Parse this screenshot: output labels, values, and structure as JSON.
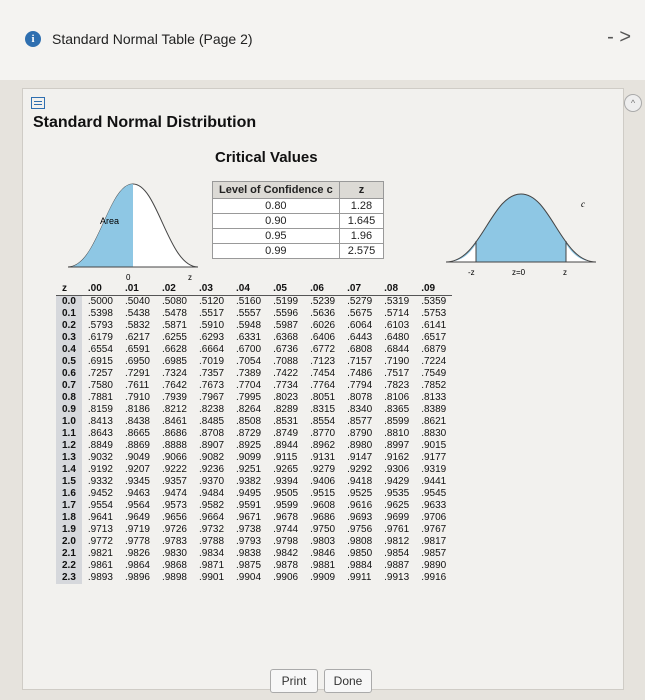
{
  "window": {
    "title": "Standard Normal Table (Page 2)",
    "info_icon": "info-icon",
    "minimize": "-",
    "expand": ">"
  },
  "heading": "Standard Normal Distribution",
  "subheading": "Critical Values",
  "critical_table": {
    "headers": [
      "Level of Confidence c",
      "z"
    ],
    "rows": [
      [
        "0.80",
        "1.28"
      ],
      [
        "0.90",
        "1.645"
      ],
      [
        "0.95",
        "1.96"
      ],
      [
        "0.99",
        "2.575"
      ]
    ]
  },
  "left_curve": {
    "area_label": "Area",
    "axis_label": "0",
    "z_label": "z"
  },
  "right_curve": {
    "c_label": "c",
    "neg_z": "-z",
    "zero": "z=0",
    "pos_z": "z"
  },
  "ztable": {
    "columns": [
      "z",
      ".00",
      ".01",
      ".02",
      ".03",
      ".04",
      ".05",
      ".06",
      ".07",
      ".08",
      ".09"
    ],
    "rows": [
      [
        "0.0",
        ".5000",
        ".5040",
        ".5080",
        ".5120",
        ".5160",
        ".5199",
        ".5239",
        ".5279",
        ".5319",
        ".5359"
      ],
      [
        "0.1",
        ".5398",
        ".5438",
        ".5478",
        ".5517",
        ".5557",
        ".5596",
        ".5636",
        ".5675",
        ".5714",
        ".5753"
      ],
      [
        "0.2",
        ".5793",
        ".5832",
        ".5871",
        ".5910",
        ".5948",
        ".5987",
        ".6026",
        ".6064",
        ".6103",
        ".6141"
      ],
      [
        "0.3",
        ".6179",
        ".6217",
        ".6255",
        ".6293",
        ".6331",
        ".6368",
        ".6406",
        ".6443",
        ".6480",
        ".6517"
      ],
      [
        "0.4",
        ".6554",
        ".6591",
        ".6628",
        ".6664",
        ".6700",
        ".6736",
        ".6772",
        ".6808",
        ".6844",
        ".6879"
      ],
      [
        "0.5",
        ".6915",
        ".6950",
        ".6985",
        ".7019",
        ".7054",
        ".7088",
        ".7123",
        ".7157",
        ".7190",
        ".7224"
      ],
      [
        "0.6",
        ".7257",
        ".7291",
        ".7324",
        ".7357",
        ".7389",
        ".7422",
        ".7454",
        ".7486",
        ".7517",
        ".7549"
      ],
      [
        "0.7",
        ".7580",
        ".7611",
        ".7642",
        ".7673",
        ".7704",
        ".7734",
        ".7764",
        ".7794",
        ".7823",
        ".7852"
      ],
      [
        "0.8",
        ".7881",
        ".7910",
        ".7939",
        ".7967",
        ".7995",
        ".8023",
        ".8051",
        ".8078",
        ".8106",
        ".8133"
      ],
      [
        "0.9",
        ".8159",
        ".8186",
        ".8212",
        ".8238",
        ".8264",
        ".8289",
        ".8315",
        ".8340",
        ".8365",
        ".8389"
      ],
      [
        "1.0",
        ".8413",
        ".8438",
        ".8461",
        ".8485",
        ".8508",
        ".8531",
        ".8554",
        ".8577",
        ".8599",
        ".8621"
      ],
      [
        "1.1",
        ".8643",
        ".8665",
        ".8686",
        ".8708",
        ".8729",
        ".8749",
        ".8770",
        ".8790",
        ".8810",
        ".8830"
      ],
      [
        "1.2",
        ".8849",
        ".8869",
        ".8888",
        ".8907",
        ".8925",
        ".8944",
        ".8962",
        ".8980",
        ".8997",
        ".9015"
      ],
      [
        "1.3",
        ".9032",
        ".9049",
        ".9066",
        ".9082",
        ".9099",
        ".9115",
        ".9131",
        ".9147",
        ".9162",
        ".9177"
      ],
      [
        "1.4",
        ".9192",
        ".9207",
        ".9222",
        ".9236",
        ".9251",
        ".9265",
        ".9279",
        ".9292",
        ".9306",
        ".9319"
      ],
      [
        "1.5",
        ".9332",
        ".9345",
        ".9357",
        ".9370",
        ".9382",
        ".9394",
        ".9406",
        ".9418",
        ".9429",
        ".9441"
      ],
      [
        "1.6",
        ".9452",
        ".9463",
        ".9474",
        ".9484",
        ".9495",
        ".9505",
        ".9515",
        ".9525",
        ".9535",
        ".9545"
      ],
      [
        "1.7",
        ".9554",
        ".9564",
        ".9573",
        ".9582",
        ".9591",
        ".9599",
        ".9608",
        ".9616",
        ".9625",
        ".9633"
      ],
      [
        "1.8",
        ".9641",
        ".9649",
        ".9656",
        ".9664",
        ".9671",
        ".9678",
        ".9686",
        ".9693",
        ".9699",
        ".9706"
      ],
      [
        "1.9",
        ".9713",
        ".9719",
        ".9726",
        ".9732",
        ".9738",
        ".9744",
        ".9750",
        ".9756",
        ".9761",
        ".9767"
      ],
      [
        "2.0",
        ".9772",
        ".9778",
        ".9783",
        ".9788",
        ".9793",
        ".9798",
        ".9803",
        ".9808",
        ".9812",
        ".9817"
      ],
      [
        "2.1",
        ".9821",
        ".9826",
        ".9830",
        ".9834",
        ".9838",
        ".9842",
        ".9846",
        ".9850",
        ".9854",
        ".9857"
      ],
      [
        "2.2",
        ".9861",
        ".9864",
        ".9868",
        ".9871",
        ".9875",
        ".9878",
        ".9881",
        ".9884",
        ".9887",
        ".9890"
      ],
      [
        "2.3",
        ".9893",
        ".9896",
        ".9898",
        ".9901",
        ".9904",
        ".9906",
        ".9909",
        ".9911",
        ".9913",
        ".9916"
      ]
    ]
  },
  "buttons": {
    "print": "Print",
    "done": "Done"
  }
}
